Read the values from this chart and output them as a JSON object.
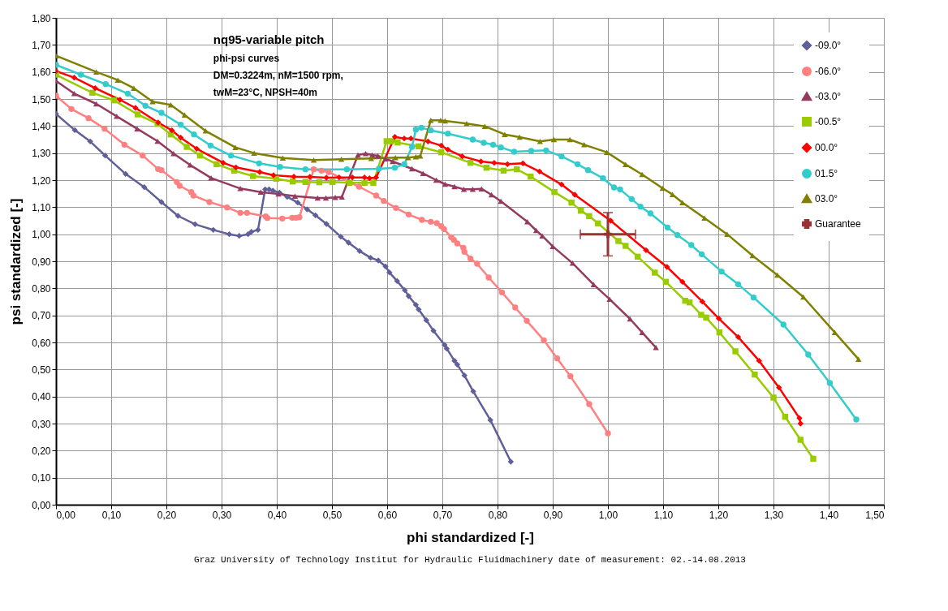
{
  "chart_data": {
    "type": "line",
    "title": "nq95-variable pitch",
    "subtitle": "phi-psi curves\nDM=0.3224m, nM=1500 rpm,\ntwM=23°C, NPSH=40m",
    "xlabel": "phi standardized [-]",
    "ylabel": "psi standardized [-]",
    "annotations": [
      "Graz University of Technology  Institut for Hydraulic Fluidmachinery       date of measurement: 02.-14.08.2013"
    ],
    "xlim": [
      0,
      1.5
    ],
    "ylim": [
      0,
      1.8
    ],
    "xticks": [
      {
        "value": 0,
        "label": "0,00"
      },
      {
        "value": 0.1,
        "label": "0,10"
      },
      {
        "value": 0.2,
        "label": "0,20"
      },
      {
        "value": 0.3,
        "label": "0,30"
      },
      {
        "value": 0.4,
        "label": "0,40"
      },
      {
        "value": 0.5,
        "label": "0,50"
      },
      {
        "value": 0.6,
        "label": "0,60"
      },
      {
        "value": 0.7,
        "label": "0,70"
      },
      {
        "value": 0.8,
        "label": "0,80"
      },
      {
        "value": 0.9,
        "label": "0,90"
      },
      {
        "value": 1.0,
        "label": "1,00"
      },
      {
        "value": 1.1,
        "label": "1,10"
      },
      {
        "value": 1.2,
        "label": "1,20"
      },
      {
        "value": 1.3,
        "label": "1,30"
      },
      {
        "value": 1.4,
        "label": "1,40"
      },
      {
        "value": 1.5,
        "label": "1,50"
      }
    ],
    "yticks": [
      {
        "value": 0,
        "label": "0,00"
      },
      {
        "value": 0.1,
        "label": "0,10"
      },
      {
        "value": 0.2,
        "label": "0,20"
      },
      {
        "value": 0.3,
        "label": "0,30"
      },
      {
        "value": 0.4,
        "label": "0,40"
      },
      {
        "value": 0.5,
        "label": "0,50"
      },
      {
        "value": 0.6,
        "label": "0,60"
      },
      {
        "value": 0.7,
        "label": "0,70"
      },
      {
        "value": 0.8,
        "label": "0,80"
      },
      {
        "value": 0.9,
        "label": "0,90"
      },
      {
        "value": 1.0,
        "label": "1,00"
      },
      {
        "value": 1.1,
        "label": "1,10"
      },
      {
        "value": 1.2,
        "label": "1,20"
      },
      {
        "value": 1.3,
        "label": "1,30"
      },
      {
        "value": 1.4,
        "label": "1,40"
      },
      {
        "value": 1.5,
        "label": "1,50"
      },
      {
        "value": 1.6,
        "label": "1,60"
      },
      {
        "value": 1.7,
        "label": "1,70"
      },
      {
        "value": 1.8,
        "label": "1,80"
      }
    ],
    "grid": true,
    "legend": "top right",
    "line_style": "solid",
    "series": [
      {
        "name": "-09.0°",
        "color": "#5f5f99",
        "marker": "diamond",
        "x": [
          0,
          0.034,
          0.062,
          0.089,
          0.126,
          0.16,
          0.191,
          0.221,
          0.252,
          0.285,
          0.314,
          0.332,
          0.348,
          0.354,
          0.366,
          0.379,
          0.386,
          0.393,
          0.405,
          0.419,
          0.438,
          0.455,
          0.47,
          0.49,
          0.516,
          0.53,
          0.55,
          0.57,
          0.584,
          0.597,
          0.604,
          0.618,
          0.632,
          0.639,
          0.652,
          0.657,
          0.671,
          0.684,
          0.704,
          0.708,
          0.722,
          0.727,
          0.74,
          0.756,
          0.787,
          0.824
        ],
        "values": [
          1.445,
          1.385,
          1.343,
          1.291,
          1.223,
          1.174,
          1.119,
          1.068,
          1.037,
          1.016,
          1.0,
          0.994,
          1.0,
          1.009,
          1.016,
          1.166,
          1.166,
          1.161,
          1.154,
          1.138,
          1.117,
          1.092,
          1.07,
          1.038,
          0.991,
          0.969,
          0.938,
          0.913,
          0.903,
          0.881,
          0.859,
          0.827,
          0.793,
          0.771,
          0.739,
          0.722,
          0.682,
          0.643,
          0.591,
          0.577,
          0.532,
          0.518,
          0.478,
          0.419,
          0.313,
          0.159
        ]
      },
      {
        "name": "-06.0°",
        "color": "#ff8080",
        "marker": "circle",
        "x": [
          0,
          0.028,
          0.059,
          0.088,
          0.124,
          0.157,
          0.185,
          0.191,
          0.219,
          0.224,
          0.245,
          0.249,
          0.278,
          0.31,
          0.334,
          0.346,
          0.38,
          0.383,
          0.41,
          0.428,
          0.435,
          0.441,
          0.467,
          0.481,
          0.494,
          0.549,
          0.58,
          0.594,
          0.616,
          0.639,
          0.663,
          0.679,
          0.69,
          0.698,
          0.703,
          0.716,
          0.721,
          0.727,
          0.738,
          0.74,
          0.751,
          0.763,
          0.784,
          0.808,
          0.832,
          0.853,
          0.884,
          0.908,
          0.932,
          0.966,
          1.0
        ],
        "values": [
          1.512,
          1.463,
          1.429,
          1.39,
          1.331,
          1.291,
          1.241,
          1.237,
          1.193,
          1.179,
          1.156,
          1.143,
          1.119,
          1.099,
          1.079,
          1.079,
          1.066,
          1.06,
          1.058,
          1.061,
          1.061,
          1.063,
          1.24,
          1.235,
          1.23,
          1.176,
          1.143,
          1.123,
          1.097,
          1.073,
          1.053,
          1.046,
          1.041,
          1.03,
          1.019,
          0.989,
          0.979,
          0.966,
          0.95,
          0.935,
          0.91,
          0.891,
          0.84,
          0.785,
          0.729,
          0.68,
          0.608,
          0.541,
          0.475,
          0.372,
          0.264
        ]
      },
      {
        "name": "-03.0°",
        "color": "#953a5e",
        "marker": "triangle",
        "x": [
          0,
          0.033,
          0.073,
          0.11,
          0.147,
          0.184,
          0.213,
          0.243,
          0.281,
          0.334,
          0.371,
          0.403,
          0.433,
          0.474,
          0.489,
          0.506,
          0.518,
          0.547,
          0.561,
          0.573,
          0.583,
          0.597,
          0.61,
          0.645,
          0.665,
          0.689,
          0.705,
          0.722,
          0.739,
          0.755,
          0.771,
          0.789,
          0.806,
          0.854,
          0.87,
          0.881,
          0.9,
          0.936,
          0.974,
          1.003,
          1.04,
          1.062,
          1.087
        ],
        "values": [
          1.567,
          1.52,
          1.482,
          1.436,
          1.39,
          1.344,
          1.298,
          1.256,
          1.208,
          1.169,
          1.156,
          1.149,
          1.141,
          1.134,
          1.134,
          1.136,
          1.138,
          1.293,
          1.298,
          1.293,
          1.29,
          1.279,
          1.269,
          1.242,
          1.225,
          1.2,
          1.185,
          1.176,
          1.166,
          1.166,
          1.168,
          1.146,
          1.122,
          1.046,
          1.014,
          0.994,
          0.955,
          0.893,
          0.814,
          0.76,
          0.687,
          0.637,
          0.581
        ]
      },
      {
        "name": "-00.5°",
        "color": "#99cc00",
        "marker": "square",
        "x": [
          0,
          0.066,
          0.105,
          0.148,
          0.184,
          0.208,
          0.237,
          0.261,
          0.291,
          0.323,
          0.357,
          0.399,
          0.429,
          0.452,
          0.477,
          0.501,
          0.532,
          0.559,
          0.575,
          0.599,
          0.607,
          0.619,
          0.657,
          0.698,
          0.751,
          0.78,
          0.811,
          0.835,
          0.86,
          0.903,
          0.934,
          0.951,
          0.966,
          0.982,
          1.019,
          1.032,
          1.054,
          1.085,
          1.105,
          1.14,
          1.148,
          1.169,
          1.178,
          1.202,
          1.231,
          1.266,
          1.3,
          1.321,
          1.349,
          1.372
        ],
        "values": [
          1.59,
          1.523,
          1.495,
          1.443,
          1.408,
          1.369,
          1.323,
          1.291,
          1.259,
          1.235,
          1.215,
          1.205,
          1.195,
          1.193,
          1.192,
          1.193,
          1.19,
          1.19,
          1.19,
          1.344,
          1.344,
          1.339,
          1.325,
          1.303,
          1.264,
          1.246,
          1.235,
          1.24,
          1.213,
          1.156,
          1.117,
          1.087,
          1.067,
          1.04,
          0.975,
          0.957,
          0.917,
          0.858,
          0.824,
          0.754,
          0.748,
          0.702,
          0.692,
          0.637,
          0.567,
          0.481,
          0.396,
          0.325,
          0.24,
          0.17
        ]
      },
      {
        "name": "00.0°",
        "color": "#ff0000",
        "marker": "diamond",
        "x": [
          0,
          0.033,
          0.071,
          0.116,
          0.144,
          0.185,
          0.21,
          0.226,
          0.255,
          0.303,
          0.326,
          0.369,
          0.394,
          0.431,
          0.46,
          0.49,
          0.513,
          0.537,
          0.559,
          0.568,
          0.58,
          0.614,
          0.631,
          0.643,
          0.674,
          0.698,
          0.71,
          0.736,
          0.77,
          0.794,
          0.818,
          0.846,
          0.876,
          0.916,
          0.94,
          1.005,
          1.069,
          1.107,
          1.135,
          1.171,
          1.201,
          1.236,
          1.274,
          1.31,
          1.347,
          1.349
        ],
        "values": [
          1.603,
          1.579,
          1.54,
          1.497,
          1.467,
          1.413,
          1.384,
          1.357,
          1.316,
          1.264,
          1.247,
          1.23,
          1.218,
          1.213,
          1.212,
          1.209,
          1.21,
          1.21,
          1.21,
          1.207,
          1.21,
          1.36,
          1.354,
          1.354,
          1.343,
          1.328,
          1.313,
          1.288,
          1.269,
          1.264,
          1.259,
          1.262,
          1.232,
          1.184,
          1.146,
          1.05,
          0.941,
          0.879,
          0.824,
          0.751,
          0.688,
          0.62,
          0.532,
          0.433,
          0.32,
          0.3
        ]
      },
      {
        "name": "01.5°",
        "color": "#33cccc",
        "marker": "circle",
        "x": [
          0,
          0.045,
          0.09,
          0.13,
          0.162,
          0.191,
          0.226,
          0.25,
          0.28,
          0.317,
          0.368,
          0.406,
          0.452,
          0.527,
          0.585,
          0.614,
          0.631,
          0.645,
          0.652,
          0.662,
          0.679,
          0.71,
          0.755,
          0.775,
          0.792,
          0.806,
          0.83,
          0.861,
          0.888,
          0.916,
          0.945,
          0.964,
          0.991,
          1.011,
          1.022,
          1.043,
          1.059,
          1.077,
          1.108,
          1.126,
          1.151,
          1.17,
          1.206,
          1.236,
          1.264,
          1.318,
          1.363,
          1.402,
          1.45
        ],
        "values": [
          1.626,
          1.59,
          1.555,
          1.52,
          1.475,
          1.449,
          1.405,
          1.369,
          1.328,
          1.291,
          1.262,
          1.249,
          1.24,
          1.24,
          1.242,
          1.246,
          1.259,
          1.323,
          1.387,
          1.394,
          1.384,
          1.372,
          1.35,
          1.338,
          1.331,
          1.321,
          1.305,
          1.308,
          1.31,
          1.288,
          1.259,
          1.237,
          1.207,
          1.173,
          1.166,
          1.13,
          1.102,
          1.077,
          1.025,
          0.997,
          0.96,
          0.926,
          0.862,
          0.815,
          0.766,
          0.666,
          0.555,
          0.45,
          0.315
        ]
      },
      {
        "name": "03.0°",
        "color": "#808000",
        "marker": "triangle",
        "x": [
          0,
          0.073,
          0.112,
          0.141,
          0.175,
          0.208,
          0.233,
          0.271,
          0.325,
          0.359,
          0.411,
          0.467,
          0.517,
          0.571,
          0.615,
          0.638,
          0.652,
          0.66,
          0.679,
          0.697,
          0.705,
          0.744,
          0.777,
          0.813,
          0.84,
          0.877,
          0.902,
          0.931,
          0.957,
          0.998,
          1.032,
          1.062,
          1.099,
          1.117,
          1.135,
          1.175,
          1.216,
          1.262,
          1.307,
          1.354,
          1.411,
          1.454
        ],
        "values": [
          1.66,
          1.6,
          1.57,
          1.54,
          1.49,
          1.478,
          1.441,
          1.382,
          1.321,
          1.3,
          1.282,
          1.274,
          1.277,
          1.28,
          1.283,
          1.283,
          1.286,
          1.289,
          1.421,
          1.421,
          1.419,
          1.409,
          1.399,
          1.369,
          1.359,
          1.343,
          1.35,
          1.35,
          1.331,
          1.303,
          1.258,
          1.221,
          1.17,
          1.147,
          1.117,
          1.06,
          1.0,
          0.921,
          0.849,
          0.768,
          0.637,
          0.538
        ]
      },
      {
        "name": "Guarantee",
        "type": "scatter",
        "color": "#993333",
        "marker": "cross",
        "x": [
          1.0
        ],
        "values": [
          1.0
        ],
        "errors": [
          0.08
        ],
        "xerrors": [
          0.05
        ]
      }
    ]
  }
}
